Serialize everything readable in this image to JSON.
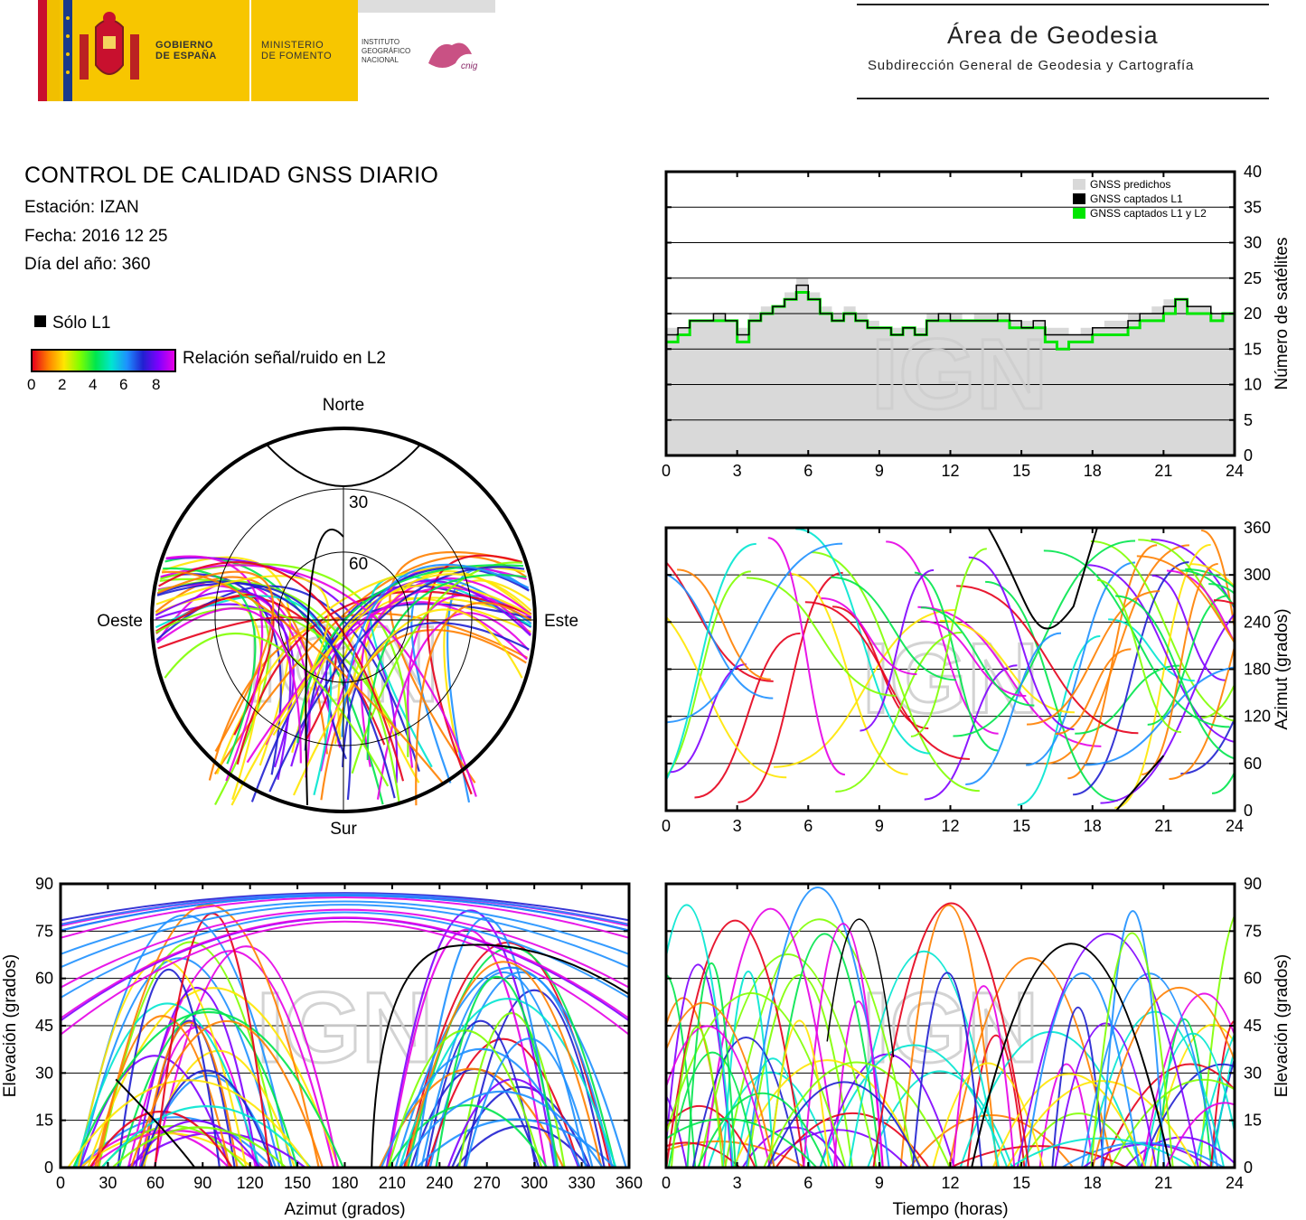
{
  "header": {
    "gobierno": "GOBIERNO DE ESPAÑA",
    "ministerio": "MINISTERIO DE FOMENTO",
    "instituto": "INSTITUTO GEOGRÁFICO NACIONAL",
    "area_title": "Área de Geodesia",
    "area_subtitle": "Subdirección General de Geodesia y Cartografía"
  },
  "info": {
    "title": "CONTROL DE CALIDAD GNSS DIARIO",
    "station": "Estación: IZAN",
    "date": "Fecha: 2016 12 25",
    "doy": "Día del año: 360",
    "legend_l1": "Sólo L1",
    "colorbar_label": "Relación señal/ruido en L2",
    "colorbar_ticks": [
      "0",
      "2",
      "4",
      "6",
      "8"
    ]
  },
  "colors": {
    "predicted": "#d9d9d9",
    "l1": "#000000",
    "l1l2": "#00e600",
    "watermark": "#cfcfcf"
  },
  "chart_data": [
    {
      "id": "sats",
      "type": "area",
      "legend": [
        "GNSS predichos",
        "GNSS captados L1",
        "GNSS captados L1 y L2"
      ],
      "ylabel": "Número de satélites",
      "ylim": [
        0,
        40
      ],
      "xlim": [
        0,
        24
      ],
      "xticks": [
        "0",
        "3",
        "6",
        "9",
        "12",
        "15",
        "18",
        "21",
        "24"
      ],
      "yticks": [
        "0",
        "5",
        "10",
        "15",
        "20",
        "25",
        "30",
        "35",
        "40"
      ],
      "x": [
        0,
        0.5,
        1,
        1.5,
        2,
        2.5,
        3,
        3.5,
        4,
        4.5,
        5,
        5.5,
        6,
        6.5,
        7,
        7.5,
        8,
        8.5,
        9,
        9.5,
        10,
        10.5,
        11,
        11.5,
        12,
        12.5,
        13,
        13.5,
        14,
        14.5,
        15,
        15.5,
        16,
        16.5,
        17,
        17.5,
        18,
        18.5,
        19,
        19.5,
        20,
        20.5,
        21,
        21.5,
        22,
        22.5,
        23,
        23.5,
        24
      ],
      "predicted": [
        18,
        18,
        19,
        19,
        20,
        19,
        18,
        20,
        21,
        21,
        23,
        25,
        23,
        21,
        20,
        21,
        20,
        19,
        18,
        18,
        18,
        18,
        20,
        20,
        20,
        19,
        20,
        20,
        20,
        19,
        19,
        19,
        18,
        18,
        17,
        18,
        18,
        19,
        19,
        20,
        20,
        21,
        22,
        22,
        21,
        21,
        20,
        20,
        19
      ],
      "l1": [
        17,
        18,
        19,
        19,
        20,
        19,
        17,
        19,
        20,
        21,
        22,
        24,
        22,
        20,
        19,
        20,
        19,
        18,
        18,
        17,
        18,
        17,
        19,
        20,
        19,
        19,
        19,
        19,
        20,
        19,
        18,
        19,
        17,
        17,
        17,
        17,
        18,
        18,
        18,
        19,
        20,
        20,
        21,
        22,
        21,
        21,
        20,
        20,
        19
      ],
      "l1l2": [
        16,
        17,
        19,
        19,
        19,
        19,
        16,
        19,
        20,
        21,
        22,
        23,
        22,
        20,
        19,
        20,
        19,
        18,
        18,
        17,
        18,
        17,
        19,
        19,
        19,
        19,
        19,
        19,
        19,
        18,
        18,
        18,
        16,
        15,
        16,
        16,
        17,
        17,
        17,
        18,
        19,
        19,
        20,
        22,
        20,
        20,
        19,
        20,
        19
      ]
    },
    {
      "id": "skyplot",
      "type": "scatter",
      "labels": {
        "north": "Norte",
        "south": "Sur",
        "west": "Oeste",
        "east": "Este"
      },
      "rings": [
        "30",
        "60"
      ]
    },
    {
      "id": "azimut",
      "type": "scatter",
      "ylabel": "Azimut (grados)",
      "ylim": [
        0,
        360
      ],
      "xlim": [
        0,
        24
      ],
      "xticks": [
        "0",
        "3",
        "6",
        "9",
        "12",
        "15",
        "18",
        "21",
        "24"
      ],
      "yticks": [
        "0",
        "60",
        "120",
        "180",
        "240",
        "300",
        "360"
      ]
    },
    {
      "id": "elev_az",
      "type": "scatter",
      "xlabel": "Azimut (grados)",
      "ylabel": "Elevación (grados)",
      "xlim": [
        0,
        360
      ],
      "ylim": [
        0,
        90
      ],
      "xticks": [
        "0",
        "30",
        "60",
        "90",
        "120",
        "150",
        "180",
        "210",
        "240",
        "270",
        "300",
        "330",
        "360"
      ],
      "yticks": [
        "0",
        "15",
        "30",
        "45",
        "60",
        "75",
        "90"
      ]
    },
    {
      "id": "elev_time",
      "type": "line",
      "xlabel": "Tiempo (horas)",
      "ylabel": "Elevación (grados)",
      "xlim": [
        0,
        24
      ],
      "ylim": [
        0,
        90
      ],
      "xticks": [
        "0",
        "3",
        "6",
        "9",
        "12",
        "15",
        "18",
        "21",
        "24"
      ],
      "yticks": [
        "0",
        "15",
        "30",
        "45",
        "60",
        "75",
        "90"
      ]
    }
  ]
}
